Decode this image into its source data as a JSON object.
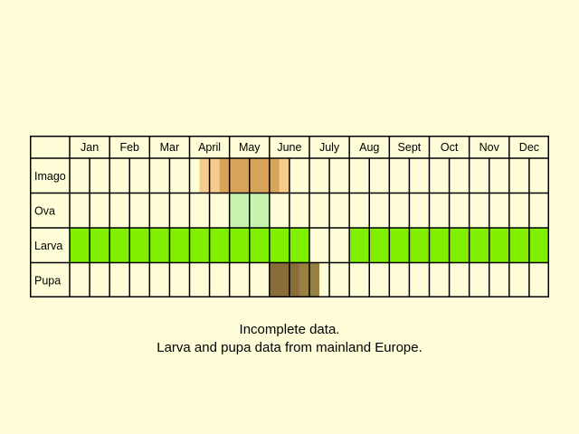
{
  "chart_data": {
    "type": "table",
    "months": [
      "Jan",
      "Feb",
      "Mar",
      "April",
      "May",
      "June",
      "July",
      "Aug",
      "Sept",
      "Oct",
      "Nov",
      "Dec"
    ],
    "stages": [
      {
        "label": "Imago",
        "highlights": [
          {
            "from": 6.5,
            "to": 7.5,
            "color": "#f6cc8c"
          },
          {
            "from": 7.5,
            "to": 10.5,
            "color": "#d8a45a"
          },
          {
            "from": 10.5,
            "to": 11,
            "color": "#f6cc8c"
          }
        ]
      },
      {
        "label": "Ova",
        "highlights": [
          {
            "from": 8,
            "to": 10,
            "color": "#c8f2b0"
          }
        ]
      },
      {
        "label": "Larva",
        "highlights": [
          {
            "from": 0,
            "to": 12,
            "color": "#80f000"
          },
          {
            "from": 14,
            "to": 24,
            "color": "#80f000"
          }
        ]
      },
      {
        "label": "Pupa",
        "highlights": [
          {
            "from": 10,
            "to": 11.5,
            "color": "#8a6e3a"
          },
          {
            "from": 11.5,
            "to": 12.5,
            "color": "#98803f"
          }
        ]
      }
    ],
    "colors": {
      "background": "#fffdd8",
      "grid": "#000000",
      "imago_light": "#f6cc8c",
      "imago_dark": "#d8a45a",
      "ova": "#c8f2b0",
      "larva": "#80f000",
      "pupa": "#8a6e3a"
    }
  },
  "caption": {
    "line1": "Incomplete data.",
    "line2": "Larva and pupa data from mainland Europe."
  }
}
